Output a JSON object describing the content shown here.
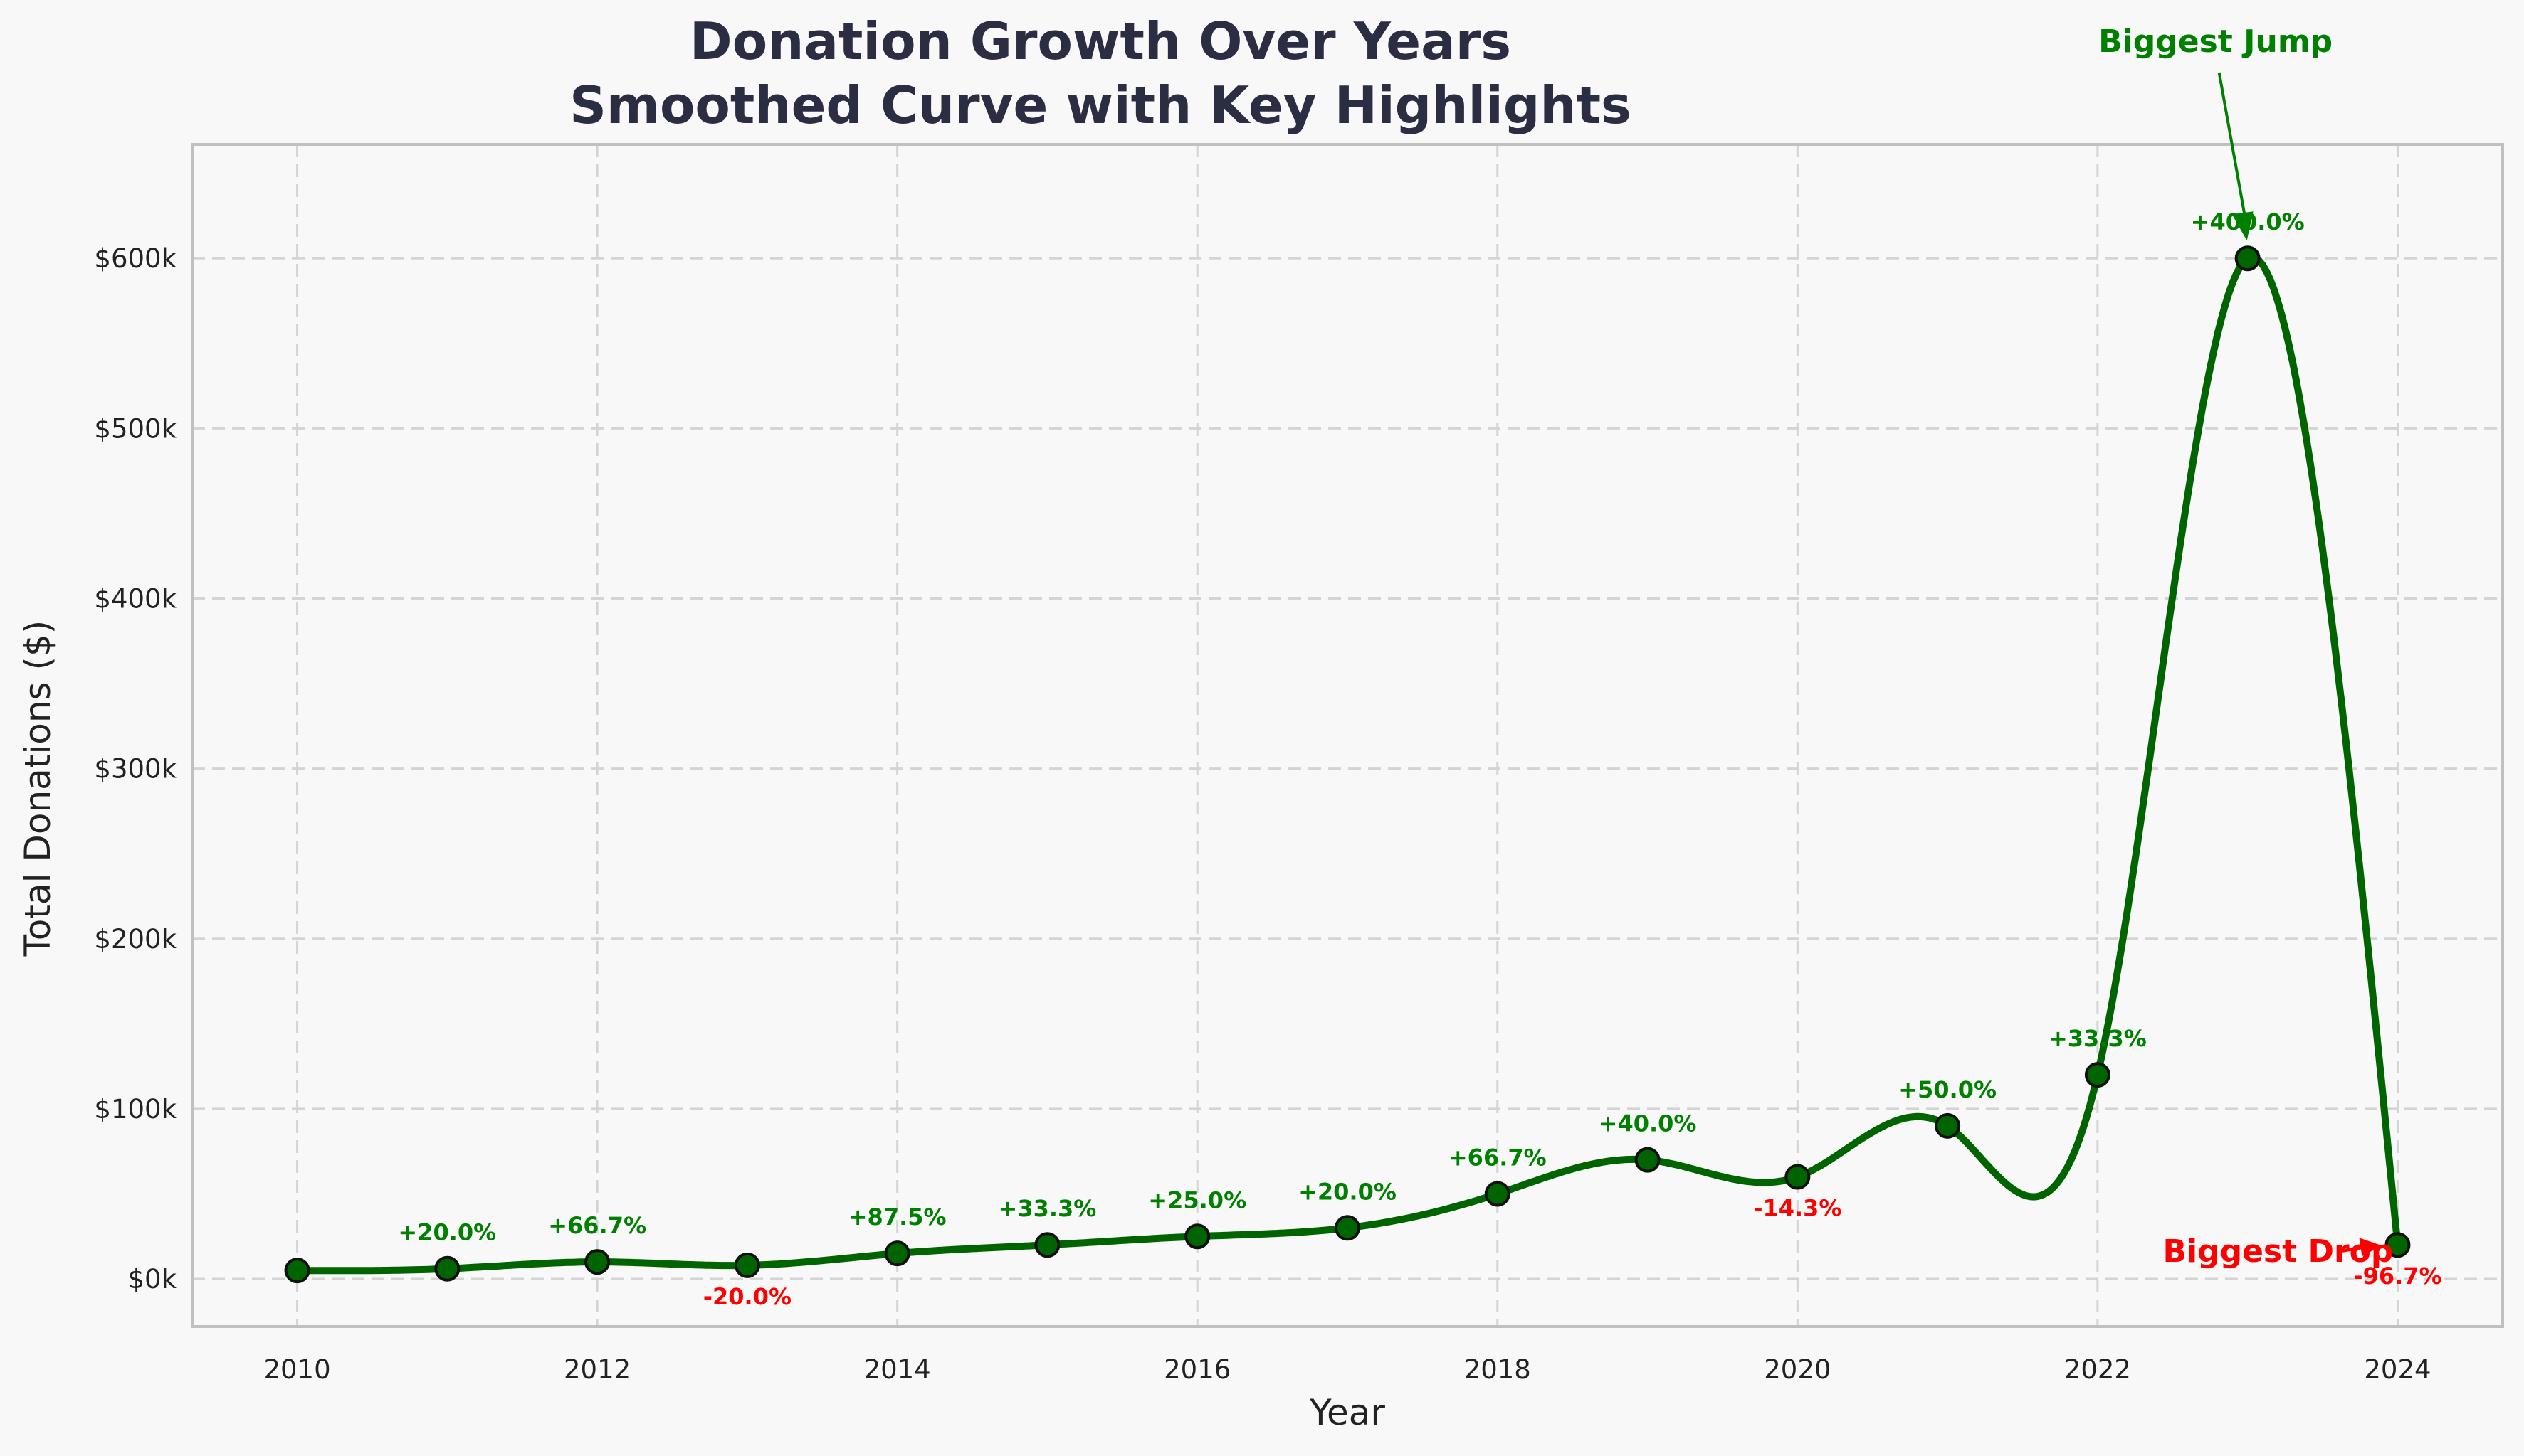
{
  "chart_data": {
    "type": "line",
    "title": "Donation Growth Over Years",
    "subtitle": "Smoothed Curve with Key Highlights",
    "xlabel": "Year",
    "ylabel": "Total Donations ($)",
    "xlim": [
      2009.3,
      2024.7
    ],
    "ylim": [
      -28000,
      667000
    ],
    "grid": true,
    "x_ticks": [
      2010,
      2012,
      2014,
      2016,
      2018,
      2020,
      2022,
      2024
    ],
    "x_tick_labels": [
      "2010",
      "2012",
      "2014",
      "2016",
      "2018",
      "2020",
      "2022",
      "2024"
    ],
    "y_ticks": [
      0,
      100000,
      200000,
      300000,
      400000,
      500000,
      600000
    ],
    "y_tick_labels": [
      "$0k",
      "$100k",
      "$200k",
      "$300k",
      "$400k",
      "$500k",
      "$600k"
    ],
    "series": [
      {
        "x": [
          2010,
          2011,
          2012,
          2013,
          2014,
          2015,
          2016,
          2017,
          2018,
          2019,
          2020,
          2021,
          2022,
          2023,
          2024
        ],
        "values": [
          5000,
          6000,
          10000,
          8000,
          15000,
          20000,
          25000,
          30000,
          50000,
          70000,
          60000,
          90000,
          120000,
          600000,
          20000
        ],
        "color": "#006400"
      }
    ],
    "changes": [
      {
        "x": 2011,
        "label": "+20.0%",
        "color": "#008000"
      },
      {
        "x": 2012,
        "label": "+66.7%",
        "color": "#008000"
      },
      {
        "x": 2013,
        "label": "-20.0%",
        "color": "#ff0000"
      },
      {
        "x": 2014,
        "label": "+87.5%",
        "color": "#008000"
      },
      {
        "x": 2015,
        "label": "+33.3%",
        "color": "#008000"
      },
      {
        "x": 2016,
        "label": "+25.0%",
        "color": "#008000"
      },
      {
        "x": 2017,
        "label": "+20.0%",
        "color": "#008000"
      },
      {
        "x": 2018,
        "label": "+66.7%",
        "color": "#008000"
      },
      {
        "x": 2019,
        "label": "+40.0%",
        "color": "#008000"
      },
      {
        "x": 2020,
        "label": "-14.3%",
        "color": "#ff0000"
      },
      {
        "x": 2021,
        "label": "+50.0%",
        "color": "#008000"
      },
      {
        "x": 2022,
        "label": "+33.3%",
        "color": "#008000"
      },
      {
        "x": 2023,
        "label": "+400.0%",
        "color": "#008000"
      },
      {
        "x": 2024,
        "label": "-96.7%",
        "color": "#ff0000"
      }
    ],
    "annotations": [
      {
        "text": "Biggest Jump",
        "x": 2023,
        "y": 600000,
        "color": "#008000"
      },
      {
        "text": "Biggest Drop",
        "x": 2024,
        "y": 20000,
        "color": "#ff0000"
      }
    ]
  }
}
